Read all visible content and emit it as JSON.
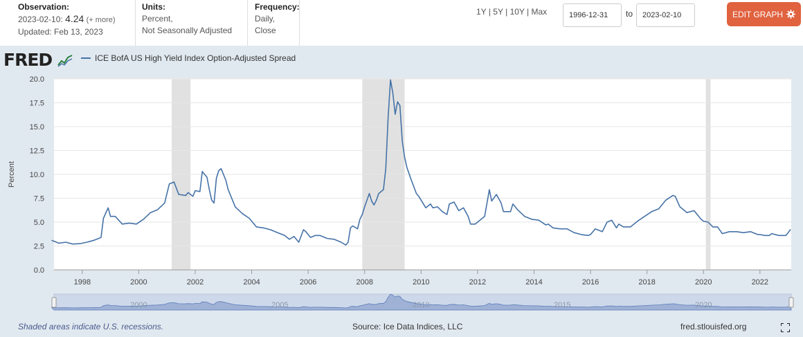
{
  "header": {
    "observation_label": "Observation:",
    "observation_date": "2023-02-10:",
    "observation_value": "4.24",
    "observation_more": "(+ more)",
    "updated": "Updated: Feb 13, 2023",
    "units_label": "Units:",
    "units_line1": "Percent,",
    "units_line2": "Not Seasonally Adjusted",
    "frequency_label": "Frequency:",
    "frequency_line1": "Daily,",
    "frequency_line2": "Close",
    "ranges": [
      "1Y",
      "5Y",
      "10Y",
      "Max"
    ],
    "range_separator": "|",
    "start_date": "1996-12-31",
    "to_label": "to",
    "end_date": "2023-02-10",
    "edit_label": "EDIT GRAPH"
  },
  "logo_text": "FRED",
  "footer": {
    "recession_note": "Shaded areas indicate U.S. recessions.",
    "source": "Source: Ice Data Indices, LLC",
    "site": "fred.stlouisfed.org"
  },
  "colors": {
    "line": "#4572a7",
    "recession": "#e1e1e1",
    "panel": "#e1e9f0",
    "edit_button": "#e0623f"
  },
  "chart_data": {
    "type": "line",
    "ylabel": "Percent",
    "series": [
      {
        "name": "ICE BofA US High Yield Index Option-Adjusted Spread"
      }
    ],
    "ylim": [
      0,
      20
    ],
    "yticks": [
      "0.0",
      "2.5",
      "5.0",
      "7.5",
      "10.0",
      "12.5",
      "15.0",
      "17.5",
      "20.0"
    ],
    "xlim": [
      "1996-12-31",
      "2023-02-10"
    ],
    "xticks": [
      "1998",
      "2000",
      "2002",
      "2004",
      "2006",
      "2008",
      "2010",
      "2012",
      "2014",
      "2016",
      "2018",
      "2020",
      "2022"
    ],
    "navigator_labels": [
      "2000",
      "2005",
      "2010",
      "2015",
      "2020"
    ],
    "recessions": [
      [
        "2001-03",
        "2001-11"
      ],
      [
        "2007-12",
        "2009-06"
      ],
      [
        "2020-02",
        "2020-04"
      ]
    ],
    "grid": true,
    "legend": "top-left",
    "points": [
      [
        "1996-12",
        3.1
      ],
      [
        "1997-03",
        2.8
      ],
      [
        "1997-06",
        2.9
      ],
      [
        "1997-09",
        2.7
      ],
      [
        "1997-12",
        2.75
      ],
      [
        "1998-03",
        2.9
      ],
      [
        "1998-06",
        3.1
      ],
      [
        "1998-09",
        3.4
      ],
      [
        "1998-10",
        5.4
      ],
      [
        "1998-12",
        6.5
      ],
      [
        "1999-01",
        5.6
      ],
      [
        "1999-03",
        5.6
      ],
      [
        "1999-06",
        4.8
      ],
      [
        "1999-09",
        4.9
      ],
      [
        "1999-12",
        4.8
      ],
      [
        "2000-03",
        5.3
      ],
      [
        "2000-06",
        6.0
      ],
      [
        "2000-09",
        6.3
      ],
      [
        "2000-12",
        7.0
      ],
      [
        "2001-02",
        9.0
      ],
      [
        "2001-04",
        9.2
      ],
      [
        "2001-06",
        7.9
      ],
      [
        "2001-09",
        7.8
      ],
      [
        "2001-10",
        8.1
      ],
      [
        "2001-12",
        7.7
      ],
      [
        "2002-01",
        8.3
      ],
      [
        "2002-03",
        8.2
      ],
      [
        "2002-04",
        10.3
      ],
      [
        "2002-06",
        9.7
      ],
      [
        "2002-07",
        8.4
      ],
      [
        "2002-08",
        7.3
      ],
      [
        "2002-09",
        7.0
      ],
      [
        "2002-10",
        9.6
      ],
      [
        "2002-11",
        10.4
      ],
      [
        "2002-12",
        10.6
      ],
      [
        "2003-02",
        9.4
      ],
      [
        "2003-03",
        8.4
      ],
      [
        "2003-06",
        6.6
      ],
      [
        "2003-09",
        5.9
      ],
      [
        "2003-12",
        5.4
      ],
      [
        "2004-03",
        4.5
      ],
      [
        "2004-06",
        4.4
      ],
      [
        "2004-09",
        4.2
      ],
      [
        "2004-12",
        3.9
      ],
      [
        "2005-03",
        3.6
      ],
      [
        "2005-05",
        3.2
      ],
      [
        "2005-07",
        3.5
      ],
      [
        "2005-09",
        2.9
      ],
      [
        "2005-11",
        4.2
      ],
      [
        "2005-12",
        4.0
      ],
      [
        "2006-02",
        3.4
      ],
      [
        "2006-04",
        3.6
      ],
      [
        "2006-06",
        3.6
      ],
      [
        "2006-09",
        3.3
      ],
      [
        "2006-12",
        3.2
      ],
      [
        "2007-03",
        2.9
      ],
      [
        "2007-05",
        2.6
      ],
      [
        "2007-06",
        2.9
      ],
      [
        "2007-07",
        4.4
      ],
      [
        "2007-08",
        4.6
      ],
      [
        "2007-10",
        4.3
      ],
      [
        "2007-11",
        5.3
      ],
      [
        "2007-12",
        5.8
      ],
      [
        "2008-01",
        6.6
      ],
      [
        "2008-03",
        8.0
      ],
      [
        "2008-04",
        7.2
      ],
      [
        "2008-05",
        6.8
      ],
      [
        "2008-06",
        7.3
      ],
      [
        "2008-07",
        8.0
      ],
      [
        "2008-09",
        8.4
      ],
      [
        "2008-10",
        10.6
      ],
      [
        "2008-11",
        16.0
      ],
      [
        "2008-12",
        19.9
      ],
      [
        "2009-01",
        18.5
      ],
      [
        "2009-02",
        16.3
      ],
      [
        "2009-03",
        17.6
      ],
      [
        "2009-04",
        17.2
      ],
      [
        "2009-05",
        13.5
      ],
      [
        "2009-06",
        11.8
      ],
      [
        "2009-07",
        10.7
      ],
      [
        "2009-09",
        9.3
      ],
      [
        "2009-11",
        8.0
      ],
      [
        "2009-12",
        7.7
      ],
      [
        "2010-03",
        6.5
      ],
      [
        "2010-05",
        6.9
      ],
      [
        "2010-06",
        6.5
      ],
      [
        "2010-08",
        6.6
      ],
      [
        "2010-10",
        6.1
      ],
      [
        "2010-12",
        5.8
      ],
      [
        "2011-01",
        6.9
      ],
      [
        "2011-03",
        7.1
      ],
      [
        "2011-05",
        6.2
      ],
      [
        "2011-07",
        6.5
      ],
      [
        "2011-09",
        5.6
      ],
      [
        "2011-10",
        4.8
      ],
      [
        "2011-12",
        4.8
      ],
      [
        "2012-01",
        5.0
      ],
      [
        "2012-04",
        5.6
      ],
      [
        "2012-06",
        8.4
      ],
      [
        "2012-07",
        7.2
      ],
      [
        "2012-09",
        7.9
      ],
      [
        "2012-11",
        7.0
      ],
      [
        "2012-12",
        6.1
      ],
      [
        "2013-03",
        6.1
      ],
      [
        "2013-04",
        6.9
      ],
      [
        "2013-06",
        6.3
      ],
      [
        "2013-09",
        5.6
      ],
      [
        "2013-12",
        5.3
      ],
      [
        "2014-03",
        5.2
      ],
      [
        "2014-06",
        4.7
      ],
      [
        "2014-07",
        4.8
      ],
      [
        "2014-09",
        4.4
      ],
      [
        "2014-12",
        4.3
      ],
      [
        "2015-03",
        4.3
      ],
      [
        "2015-06",
        3.9
      ],
      [
        "2015-09",
        3.7
      ],
      [
        "2015-12",
        3.6
      ],
      [
        "2016-01",
        3.7
      ],
      [
        "2016-03",
        4.3
      ],
      [
        "2016-06",
        4.0
      ],
      [
        "2016-08",
        5.0
      ],
      [
        "2016-10",
        5.2
      ],
      [
        "2016-12",
        4.4
      ],
      [
        "2017-01",
        4.8
      ],
      [
        "2017-03",
        4.5
      ],
      [
        "2017-06",
        4.5
      ],
      [
        "2017-09",
        5.1
      ],
      [
        "2017-12",
        5.6
      ],
      [
        "2018-03",
        6.1
      ],
      [
        "2018-06",
        6.4
      ],
      [
        "2018-09",
        7.3
      ],
      [
        "2018-12",
        7.8
      ],
      [
        "2019-01",
        7.7
      ],
      [
        "2019-03",
        6.6
      ],
      [
        "2019-06",
        6.0
      ],
      [
        "2019-09",
        6.2
      ],
      [
        "2019-12",
        5.3
      ],
      [
        "2020-01",
        5.1
      ],
      [
        "2020-03",
        5.0
      ],
      [
        "2020-05",
        4.5
      ],
      [
        "2020-07",
        4.5
      ],
      [
        "2020-09",
        3.8
      ],
      [
        "2020-12",
        4.0
      ],
      [
        "2021-03",
        4.0
      ],
      [
        "2021-06",
        3.9
      ],
      [
        "2021-09",
        4.0
      ],
      [
        "2021-12",
        3.7
      ],
      [
        "2022-01",
        3.7
      ],
      [
        "2022-03",
        3.6
      ],
      [
        "2022-05",
        3.6
      ],
      [
        "2022-06",
        3.8
      ],
      [
        "2022-09",
        3.6
      ],
      [
        "2022-12",
        3.6
      ],
      [
        "2023-01",
        3.9
      ],
      [
        "2023-02",
        4.24
      ]
    ]
  }
}
